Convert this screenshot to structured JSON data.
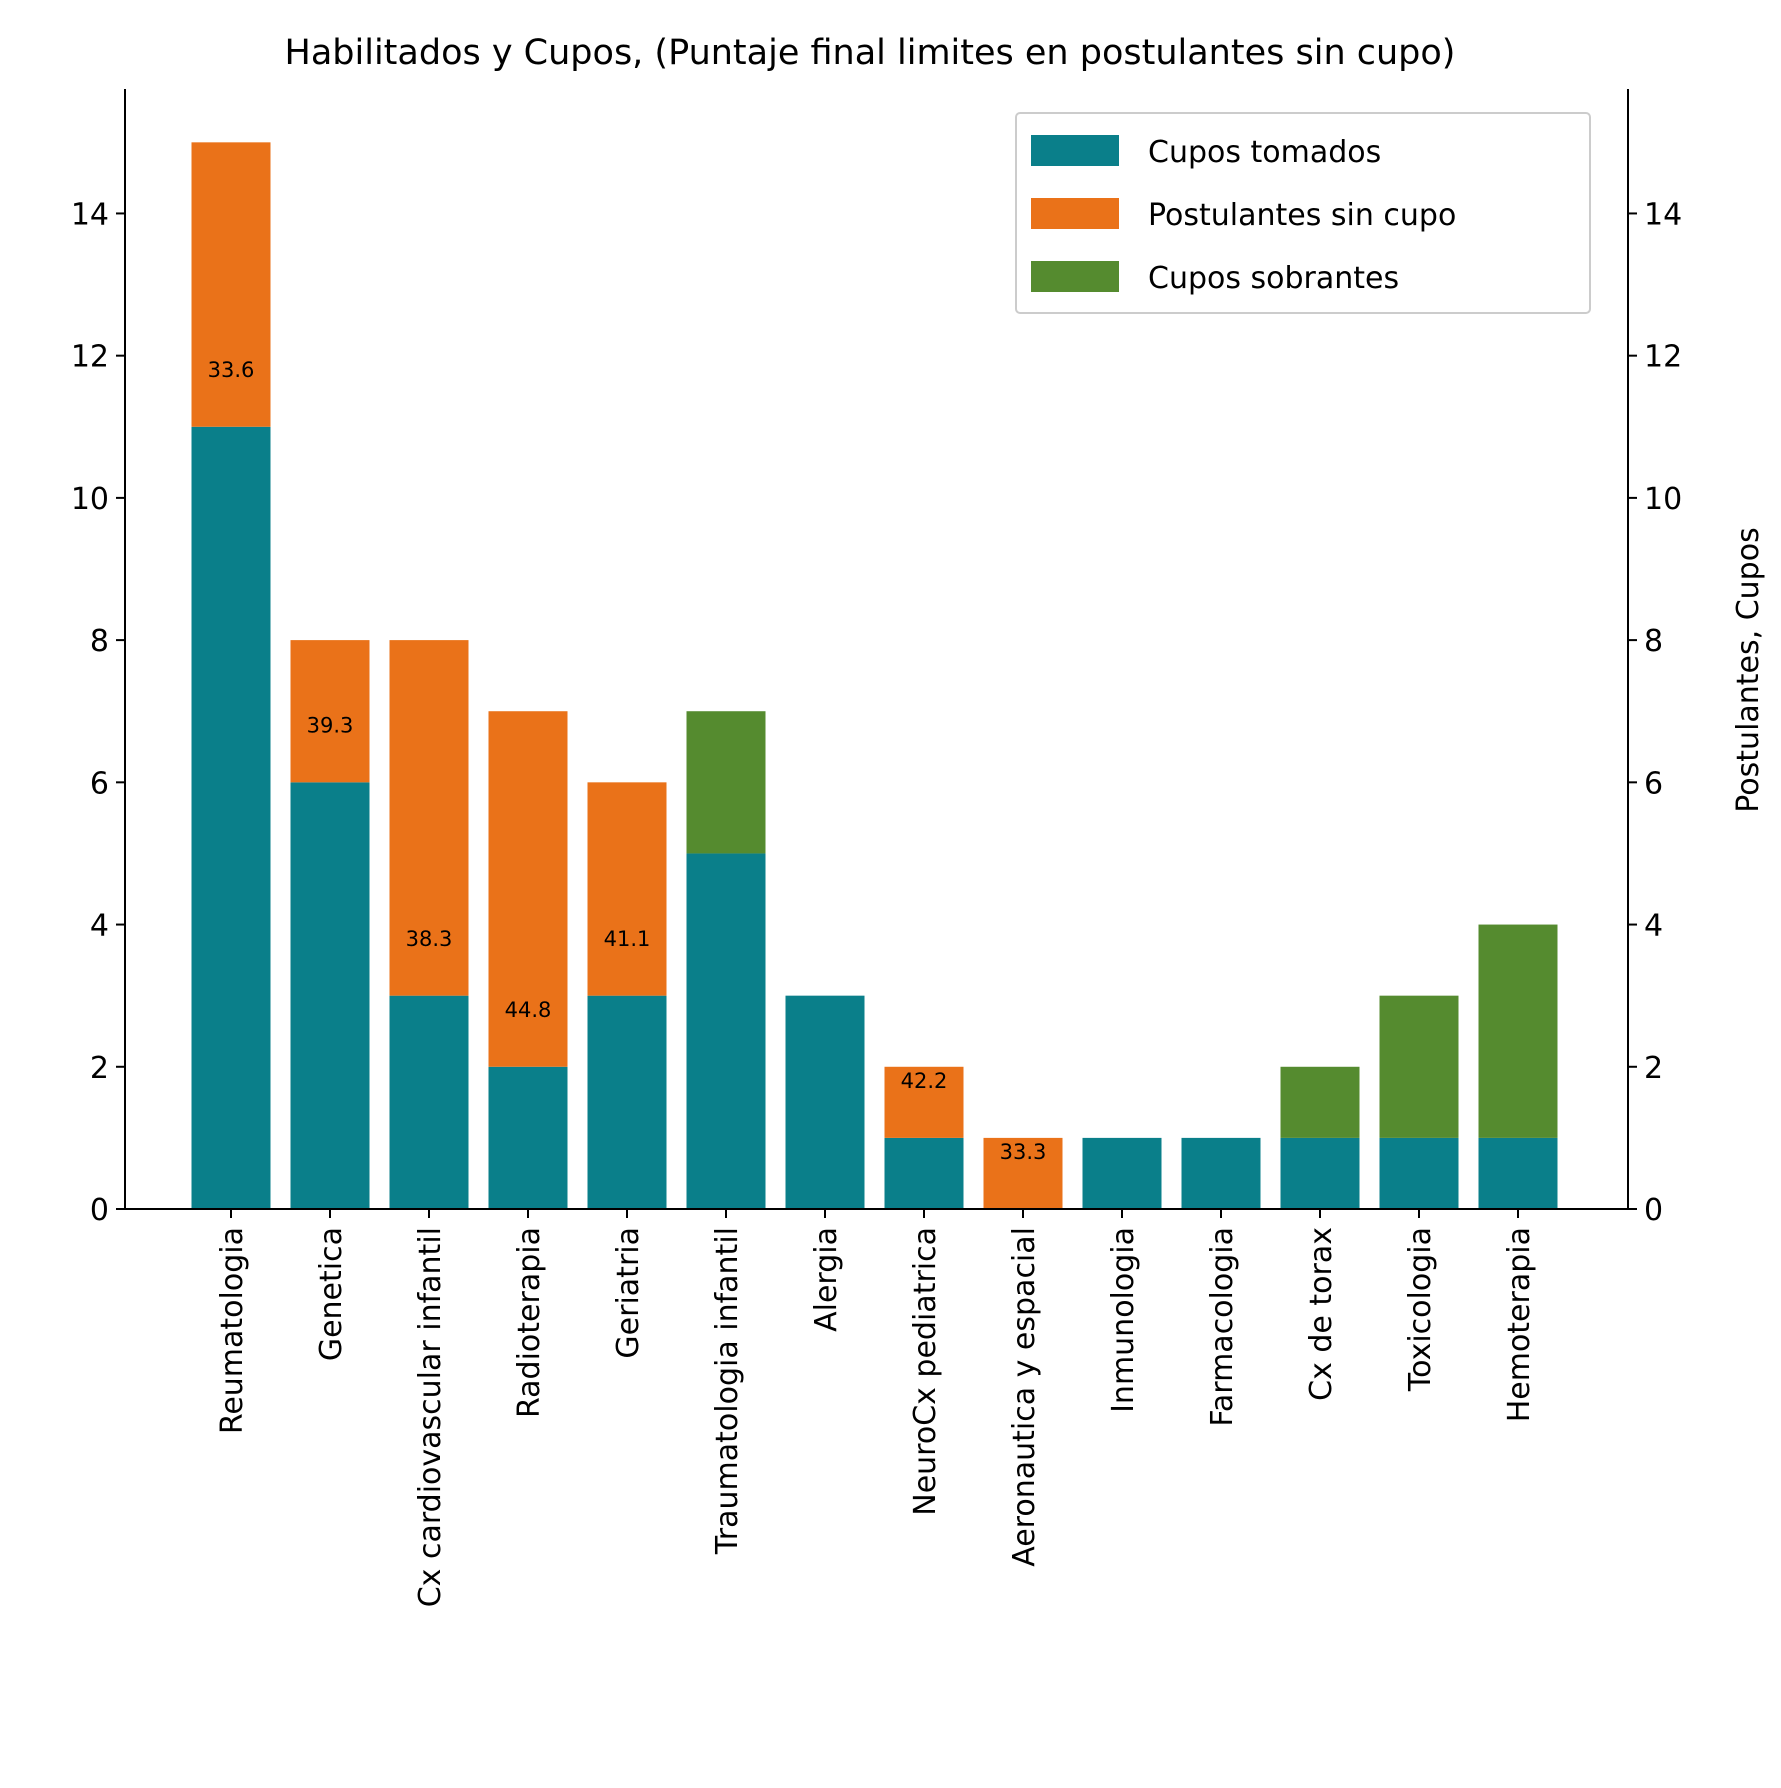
{
  "chart_data": {
    "type": "bar",
    "stacked": true,
    "title": "Habilitados y Cupos, (Puntaje final limites en postulantes sin cupo)",
    "xlabel": "",
    "ylabel_left": "",
    "ylabel_right": "Postulantes, Cupos",
    "ylim": [
      0,
      15.75
    ],
    "yticks": [
      0,
      2,
      4,
      6,
      8,
      10,
      12,
      14
    ],
    "grid": false,
    "legend_position": "top-right",
    "categories": [
      "Reumatologia",
      "Genetica",
      "Cx cardiovascular infantil",
      "Radioterapia",
      "Geriatria",
      "Traumatologia infantil",
      "Alergia",
      "NeuroCx pediatrica",
      "Aeronautica y espacial",
      "Inmunologia",
      "Farmacologia",
      "Cx de torax",
      "Toxicologia",
      "Hemoterapia"
    ],
    "series": [
      {
        "name": "Cupos tomados",
        "color": "#0a7f8a",
        "values": [
          11,
          6,
          3,
          2,
          3,
          5,
          3,
          1,
          0,
          1,
          1,
          1,
          1,
          1
        ]
      },
      {
        "name": "Postulantes sin cupo",
        "color": "#ea7219",
        "values": [
          4,
          2,
          5,
          5,
          3,
          0,
          0,
          1,
          1,
          0,
          0,
          0,
          0,
          0
        ]
      },
      {
        "name": "Cupos sobrantes",
        "color": "#558b2f",
        "values": [
          0,
          0,
          0,
          0,
          0,
          2,
          0,
          0,
          0,
          0,
          0,
          1,
          2,
          3
        ]
      }
    ],
    "annotations": [
      {
        "category": "Reumatologia",
        "text": "33.6"
      },
      {
        "category": "Genetica",
        "text": "39.3"
      },
      {
        "category": "Cx cardiovascular infantil",
        "text": "38.3"
      },
      {
        "category": "Radioterapia",
        "text": "44.8"
      },
      {
        "category": "Geriatria",
        "text": "41.1"
      },
      {
        "category": "NeuroCx pediatrica",
        "text": "42.2"
      },
      {
        "category": "Aeronautica y espacial",
        "text": "33.3"
      }
    ]
  }
}
